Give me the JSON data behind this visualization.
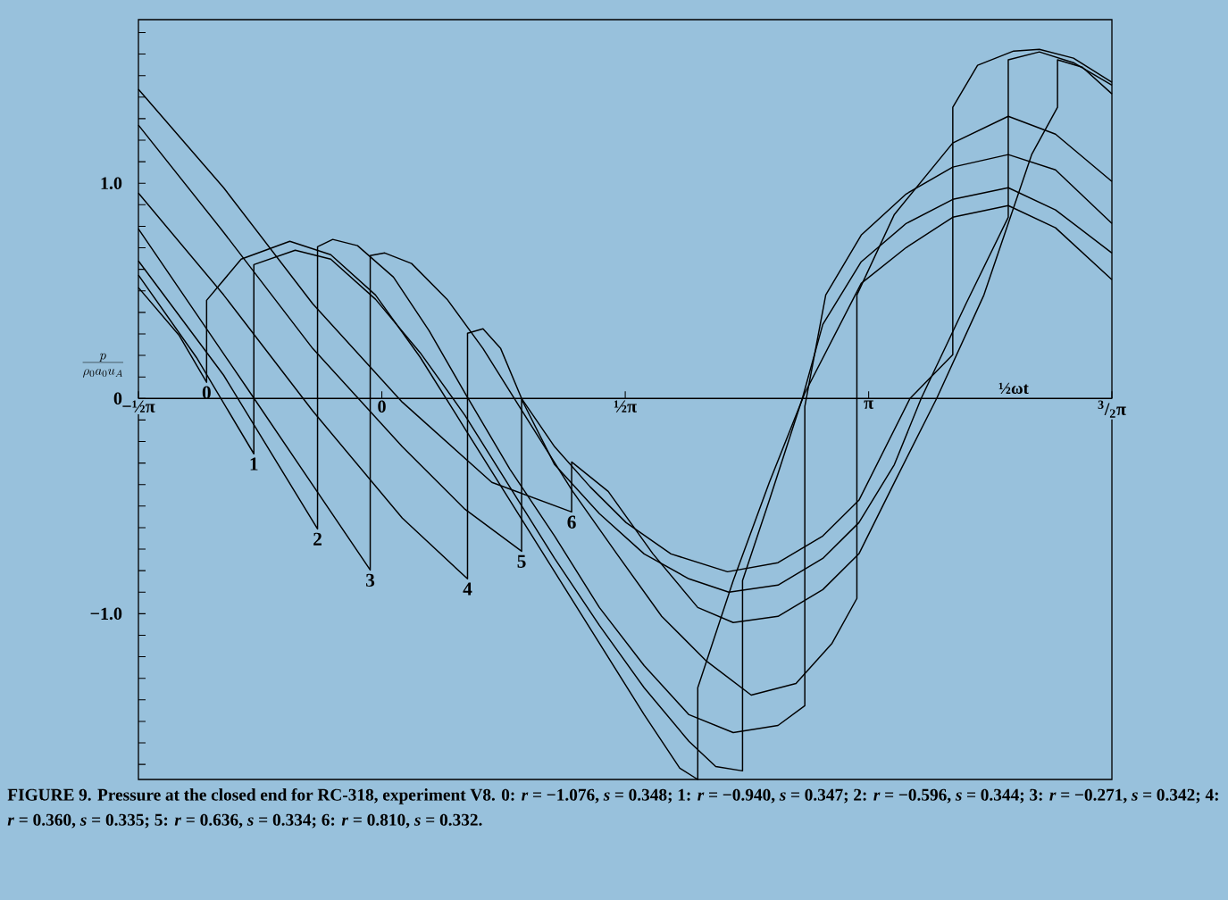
{
  "chart_data": {
    "type": "line",
    "xlabel": "½ωt",
    "ylabel": "\\frac{p}{\\rho_0 a_0 u_A}",
    "xlim": [
      -1.571,
      4.712
    ],
    "ylim": [
      -1.77,
      1.76
    ],
    "xticks": [
      {
        "value": -1.571,
        "label": "−½π"
      },
      {
        "value": 0,
        "label": "0"
      },
      {
        "value": 1.571,
        "label": "½π"
      },
      {
        "value": 3.142,
        "label": "π"
      },
      {
        "value": 4.712,
        "label": "$^{3}$/$_{2}$π"
      }
    ],
    "yticks": [
      {
        "value": -1.7,
        "label": null
      },
      {
        "value": -1.6,
        "label": null
      },
      {
        "value": -1.5,
        "label": null
      },
      {
        "value": -1.4,
        "label": null
      },
      {
        "value": -1.3,
        "label": null
      },
      {
        "value": -1.2,
        "label": null
      },
      {
        "value": -1.1,
        "label": null
      },
      {
        "value": -1.0,
        "label": "−1.0"
      },
      {
        "value": -0.9,
        "label": null
      },
      {
        "value": -0.8,
        "label": null
      },
      {
        "value": -0.7,
        "label": null
      },
      {
        "value": -0.6,
        "label": null
      },
      {
        "value": -0.5,
        "label": null
      },
      {
        "value": -0.4,
        "label": null
      },
      {
        "value": -0.3,
        "label": null
      },
      {
        "value": -0.2,
        "label": null
      },
      {
        "value": -0.1,
        "label": null
      },
      {
        "value": 0,
        "label": "0"
      },
      {
        "value": 0.1,
        "label": null
      },
      {
        "value": 0.2,
        "label": null
      },
      {
        "value": 0.3,
        "label": null
      },
      {
        "value": 0.4,
        "label": null
      },
      {
        "value": 0.5,
        "label": null
      },
      {
        "value": 0.6,
        "label": null
      },
      {
        "value": 0.7,
        "label": null
      },
      {
        "value": 0.8,
        "label": null
      },
      {
        "value": 0.9,
        "label": null
      },
      {
        "value": 1.0,
        "label": "1.0"
      },
      {
        "value": 1.1,
        "label": null
      },
      {
        "value": 1.2,
        "label": null
      },
      {
        "value": 1.3,
        "label": null
      },
      {
        "value": 1.4,
        "label": null
      },
      {
        "value": 1.5,
        "label": null
      },
      {
        "value": 1.6,
        "label": null
      },
      {
        "value": 1.7,
        "label": null
      }
    ],
    "legend": false,
    "series": [
      {
        "name": "0",
        "color": "#000000",
        "x": [
          -1.571,
          -1.31,
          -1.131,
          -1.131,
          -0.908,
          -0.594,
          -0.33,
          -0.041,
          0.248,
          0.537,
          0.826,
          1.115,
          1.404,
          1.693,
          1.923,
          2.039,
          2.039,
          2.268,
          2.501,
          2.73,
          3.094,
          3.384,
          3.685,
          4.043,
          4.348,
          4.712
        ],
        "values": [
          0.515,
          0.295,
          0.075,
          0.456,
          0.647,
          0.73,
          0.668,
          0.481,
          0.191,
          -0.141,
          -0.473,
          -0.805,
          -1.137,
          -1.469,
          -1.718,
          -1.77,
          -1.344,
          -0.846,
          -0.39,
          0.025,
          0.535,
          0.701,
          0.842,
          0.896,
          0.793,
          0.552
        ]
      },
      {
        "name": "1",
        "color": "#000000",
        "x": [
          -1.571,
          -1.197,
          -0.826,
          -0.826,
          -0.559,
          -0.33,
          -0.041,
          0.248,
          0.537,
          0.826,
          1.115,
          1.404,
          1.693,
          1.982,
          2.155,
          2.328,
          2.328,
          2.501,
          2.714,
          2.846,
          3.094,
          3.384,
          3.685,
          4.043,
          4.348,
          4.712
        ],
        "values": [
          0.573,
          0.191,
          -0.257,
          0.622,
          0.689,
          0.647,
          0.461,
          0.212,
          -0.079,
          -0.411,
          -0.743,
          -1.054,
          -1.344,
          -1.593,
          -1.71,
          -1.73,
          -0.846,
          -0.473,
          0,
          0.344,
          0.635,
          0.813,
          0.925,
          0.979,
          0.876,
          0.676
        ]
      },
      {
        "name": "2",
        "color": "#000000",
        "x": [
          -1.571,
          -1.021,
          -0.415,
          -0.415,
          -0.317,
          -0.157,
          0.075,
          0.305,
          0.537,
          0.826,
          1.115,
          1.404,
          1.693,
          1.982,
          2.268,
          2.557,
          2.73,
          2.73,
          2.865,
          3.094,
          3.384,
          3.685,
          4.043,
          4.348,
          4.712
        ],
        "values": [
          0.639,
          0.108,
          -0.606,
          0.705,
          0.739,
          0.71,
          0.564,
          0.315,
          0.025,
          -0.328,
          -0.639,
          -0.971,
          -1.241,
          -1.469,
          -1.552,
          -1.519,
          -1.427,
          -0.037,
          0.481,
          0.759,
          0.95,
          1.075,
          1.133,
          1.062,
          0.813
        ]
      },
      {
        "name": "3",
        "color": "#000000",
        "x": [
          -1.571,
          -0.848,
          -0.075,
          -0.075,
          0.019,
          0.192,
          0.421,
          0.653,
          0.942,
          1.232,
          1.517,
          1.806,
          2.095,
          2.384,
          2.673,
          2.906,
          3.066,
          3.066,
          3.308,
          3.685,
          4.043,
          4.348,
          4.712
        ],
        "values": [
          0.788,
          0.025,
          -0.797,
          0.664,
          0.676,
          0.627,
          0.461,
          0.232,
          -0.1,
          -0.432,
          -0.722,
          -1.012,
          -1.22,
          -1.378,
          -1.324,
          -1.137,
          -0.929,
          0.481,
          0.855,
          1.187,
          1.311,
          1.228,
          1.008
        ]
      },
      {
        "name": "4",
        "color": "#000000",
        "x": [
          -1.571,
          -1.021,
          -0.446,
          0.132,
          0.553,
          0.553,
          0.653,
          0.767,
          0.902,
          1.115,
          1.345,
          1.577,
          1.866,
          2.231,
          2.557,
          2.846,
          3.079,
          3.409,
          3.685,
          3.685,
          3.845,
          4.078,
          4.244,
          4.464,
          4.712
        ],
        "values": [
          0.954,
          0.481,
          -0.058,
          -0.556,
          -0.838,
          0.303,
          0.324,
          0.232,
          0,
          -0.224,
          -0.411,
          -0.577,
          -0.722,
          -0.805,
          -0.763,
          -0.639,
          -0.473,
          0,
          0.203,
          1.353,
          1.548,
          1.614,
          1.622,
          1.581,
          1.469
        ]
      },
      {
        "name": "5",
        "color": "#000000",
        "x": [
          -1.571,
          -1.021,
          -0.446,
          0.132,
          0.537,
          0.902,
          0.902,
          1.115,
          1.404,
          1.693,
          1.982,
          2.24,
          2.557,
          2.846,
          3.079,
          3.308,
          3.481,
          3.77,
          4.043,
          4.043,
          4.244,
          4.464,
          4.712
        ],
        "values": [
          1.27,
          0.772,
          0.232,
          -0.224,
          -0.515,
          -0.71,
          -0.004,
          -0.307,
          -0.535,
          -0.722,
          -0.838,
          -0.9,
          -0.867,
          -0.743,
          -0.577,
          -0.307,
          0,
          0.44,
          0.842,
          1.573,
          1.61,
          1.56,
          1.456
        ]
      },
      {
        "name": "6",
        "color": "#000000",
        "x": [
          -1.571,
          -1.021,
          -0.446,
          0.132,
          0.71,
          1.225,
          1.225,
          1.461,
          1.75,
          2.039,
          2.268,
          2.557,
          2.846,
          3.079,
          3.308,
          3.581,
          3.886,
          4.194,
          4.361,
          4.361,
          4.521,
          4.712
        ],
        "values": [
          1.436,
          0.979,
          0.44,
          -0.017,
          -0.39,
          -0.527,
          -0.295,
          -0.432,
          -0.722,
          -0.971,
          -1.041,
          -1.012,
          -0.888,
          -0.722,
          -0.39,
          0,
          0.481,
          1.133,
          1.353,
          1.573,
          1.539,
          1.415
        ]
      }
    ],
    "annotations": [
      "FIGURE 9. Pressure at the closed end for RC-318, experiment V8. 0: *r* = −1.076, *s* = 0.348; 1: *r* = −0.940, *s* = 0.347; 2: *r* = −0.596, *s* = 0.344; 3: *r* = −0.271, *s* = 0.342; 4: *r* = 0.360, *s* = 0.335; 5: *r* = 0.636, *s* = 0.334; 6: *r* = 0.810, *s* = 0.332."
    ]
  }
}
